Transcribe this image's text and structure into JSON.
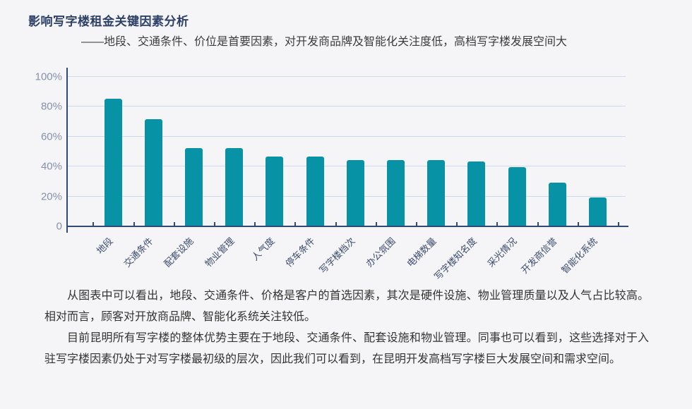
{
  "page": {
    "title": "影响写字楼租金关键因素分析",
    "subtitle": "——地段、交通条件、价位是首要因素，对开发商品牌及智能化关注度低，高档写字楼发展空间大"
  },
  "chart_data": {
    "type": "bar",
    "title": "影响写字楼租金关键因素分析",
    "categories": [
      "地段",
      "交通条件",
      "配套设施",
      "物业管理",
      "人气度",
      "停车条件",
      "写字楼档次",
      "办公氛围",
      "电梯数量",
      "写字楼知名度",
      "采光情况",
      "开发商信誉",
      "智能化系统"
    ],
    "values": [
      85,
      71,
      52,
      52,
      46,
      46,
      44,
      44,
      44,
      43,
      39,
      29,
      19
    ],
    "unit": "%",
    "xlabel": "",
    "ylabel": "",
    "ylim": [
      0,
      100
    ],
    "ytick_labels": [
      "0",
      "20%",
      "40%",
      "60%",
      "80%",
      "100%"
    ],
    "grid": true,
    "legend": "none",
    "bar_color": "#0792a6",
    "axis_color": "#2f4a74",
    "grid_color": "#ccd9ef",
    "ytick_color": "#8590ae",
    "xtick_color": "#3e4c6e"
  },
  "analysis": {
    "paragraph1": "从图表中可以看出，地段、交通条件、价格是客户的首选因素，其次是硬件设施、物业管理质量以及人气占比较高。相对而言，顾客对开放商品牌、智能化系统关注较低。",
    "paragraph2": "目前昆明所有写字楼的整体优势主要在于地段、交通条件、配套设施和物业管理。同事也可以看到，这些选择对于入驻写字楼因素仍处于对写字楼最初级的层次，因此我们可以看到，在昆明开发高档写字楼巨大发展空间和需求空间。"
  }
}
